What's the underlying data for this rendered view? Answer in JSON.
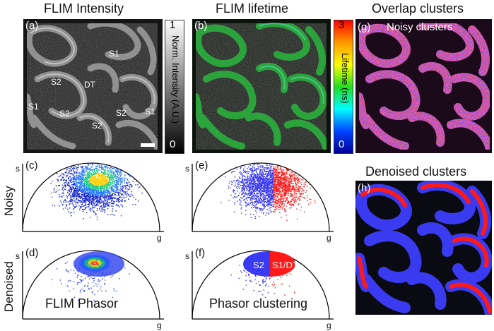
{
  "columns": {
    "intensity": "FLIM Intensity",
    "lifetime": "FLIM lifetime",
    "overlap": "Overlap clusters",
    "denoised": "Denoised clusters"
  },
  "panels": {
    "a": "(a)",
    "b": "(b)",
    "c": "(c)",
    "d": "(d)",
    "e": "(e)",
    "f": "(f)",
    "g": "(g)",
    "h": "(h)"
  },
  "intensity_bar": {
    "max": "1",
    "min": "0",
    "label": "Norm. Intensity (A.U.)"
  },
  "lifetime_bar": {
    "max": "3",
    "min": "0",
    "label": "Lifetime (ns)"
  },
  "cells": {
    "s1": "S1",
    "s2": "S2",
    "dt": "DT",
    "s1dt": "S1/DT"
  },
  "rows": {
    "noisy": "Noisy",
    "denoised": "Denoised"
  },
  "axes": {
    "s": "s",
    "g": "g"
  },
  "captions": {
    "phasor": "FLIM Phasor",
    "clustering": "Phasor clustering",
    "noisy_clusters": "Noisy clusters"
  },
  "colors": {
    "cluster_blue": "#3a3af0",
    "cluster_red": "#ff1a1a",
    "tissue_green": "#3cc84a"
  }
}
